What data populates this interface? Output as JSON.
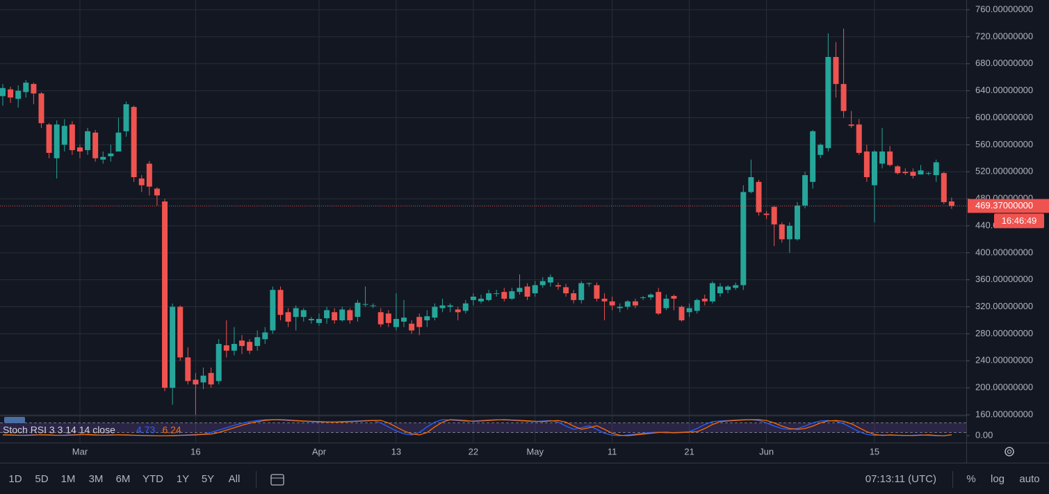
{
  "chart_data": [
    {
      "type": "candlestick",
      "open": [
        632,
        642,
        628,
        638,
        650,
        636,
        590,
        540,
        560,
        590,
        556,
        552,
        578,
        538,
        543,
        550,
        580,
        616,
        510,
        532,
        495,
        476,
        200,
        320,
        245,
        212,
        208,
        222,
        210,
        263,
        255,
        270,
        268,
        262,
        272,
        285,
        345,
        312,
        305,
        305,
        300,
        296,
        303,
        312,
        300,
        315,
        305,
        324,
        322,
        312,
        310,
        290,
        298,
        295,
        305,
        300,
        304,
        318,
        320,
        316,
        314,
        330,
        328,
        330,
        340,
        342,
        332,
        342,
        350,
        340,
        352,
        356,
        352,
        349,
        340,
        330,
        355,
        352,
        332,
        328,
        318,
        320,
        328,
        334,
        334,
        342,
        318,
        336,
        320,
        312,
        314,
        332,
        328,
        340,
        345,
        348,
        352,
        490,
        505,
        458,
        468,
        442,
        420,
        420,
        470,
        505,
        545,
        555,
        690,
        650,
        590,
        590,
        550,
        500,
        532,
        550,
        528,
        520,
        520,
        516,
        518,
        515,
        518,
        476
      ],
      "high": [
        650,
        646,
        648,
        656,
        652,
        638,
        592,
        596,
        598,
        595,
        560,
        585,
        582,
        550,
        560,
        600,
        624,
        618,
        515,
        536,
        497,
        480,
        325,
        322,
        260,
        222,
        230,
        230,
        272,
        300,
        290,
        278,
        272,
        285,
        290,
        350,
        350,
        318,
        322,
        318,
        305,
        310,
        320,
        318,
        320,
        318,
        330,
        350,
        325,
        318,
        315,
        340,
        330,
        300,
        310,
        315,
        325,
        332,
        325,
        320,
        330,
        340,
        338,
        345,
        345,
        348,
        348,
        368,
        355,
        358,
        364,
        368,
        356,
        354,
        345,
        358,
        356,
        356,
        340,
        335,
        325,
        330,
        332,
        336,
        340,
        348,
        338,
        338,
        322,
        325,
        332,
        338,
        358,
        355,
        352,
        356,
        500,
        538,
        508,
        462,
        470,
        445,
        445,
        475,
        520,
        582,
        562,
        725,
        712,
        732,
        610,
        598,
        560,
        552,
        585,
        558,
        530,
        525,
        525,
        530,
        520,
        538,
        520,
        482
      ],
      "low": [
        618,
        622,
        615,
        630,
        620,
        585,
        540,
        510,
        550,
        545,
        540,
        545,
        535,
        532,
        535,
        555,
        572,
        505,
        490,
        485,
        470,
        195,
        175,
        240,
        205,
        160,
        198,
        200,
        205,
        245,
        248,
        250,
        250,
        255,
        265,
        280,
        300,
        290,
        285,
        298,
        295,
        292,
        295,
        295,
        298,
        295,
        298,
        320,
        318,
        290,
        290,
        285,
        290,
        280,
        278,
        290,
        300,
        312,
        312,
        300,
        310,
        322,
        325,
        328,
        335,
        328,
        330,
        338,
        330,
        335,
        348,
        350,
        345,
        335,
        325,
        325,
        350,
        328,
        300,
        315,
        312,
        316,
        318,
        330,
        330,
        308,
        315,
        315,
        298,
        305,
        310,
        322,
        325,
        335,
        340,
        345,
        345,
        488,
        455,
        450,
        410,
        415,
        400,
        418,
        466,
        495,
        540,
        550,
        630,
        600,
        585,
        545,
        505,
        445,
        525,
        528,
        516,
        515,
        510,
        516,
        515,
        505,
        472,
        465
      ],
      "close": [
        644,
        630,
        640,
        652,
        636,
        592,
        548,
        590,
        588,
        552,
        550,
        580,
        540,
        542,
        547,
        578,
        620,
        512,
        500,
        498,
        485,
        200,
        320,
        245,
        210,
        205,
        218,
        205,
        265,
        255,
        265,
        262,
        255,
        275,
        282,
        345,
        308,
        298,
        318,
        315,
        302,
        302,
        315,
        300,
        316,
        300,
        326,
        324,
        322,
        294,
        296,
        302,
        304,
        285,
        290,
        306,
        320,
        322,
        322,
        312,
        325,
        335,
        332,
        340,
        340,
        332,
        343,
        348,
        335,
        352,
        358,
        364,
        350,
        340,
        330,
        355,
        355,
        332,
        328,
        322,
        320,
        328,
        322,
        334,
        338,
        310,
        332,
        332,
        300,
        318,
        330,
        328,
        355,
        350,
        350,
        352,
        490,
        512,
        460,
        456,
        442,
        420,
        440,
        470,
        515,
        580,
        560,
        690,
        650,
        610,
        588,
        548,
        512,
        550,
        550,
        530,
        518,
        518,
        514,
        522,
        518,
        534,
        475,
        469.37
      ],
      "up_color": "#26a69a",
      "down_color": "#ef5350",
      "xlim": [
        -0.36,
        124.9
      ],
      "xticks": [
        {
          "value": 10,
          "label": "Mar"
        },
        {
          "value": 25,
          "label": "16"
        },
        {
          "value": 41,
          "label": "Apr"
        },
        {
          "value": 51,
          "label": "13"
        },
        {
          "value": 61,
          "label": "22"
        },
        {
          "value": 69,
          "label": "May"
        },
        {
          "value": 79,
          "label": "11"
        },
        {
          "value": 89,
          "label": "21"
        },
        {
          "value": 99,
          "label": "Jun"
        },
        {
          "value": 113,
          "label": "15"
        }
      ],
      "ylim": [
        159,
        774.4
      ],
      "yticks": [
        {
          "value": 160,
          "label": "160.00000000"
        },
        {
          "value": 200,
          "label": "200.00000000"
        },
        {
          "value": 240,
          "label": "240.00000000"
        },
        {
          "value": 280,
          "label": "280.00000000"
        },
        {
          "value": 320,
          "label": "320.00000000"
        },
        {
          "value": 360,
          "label": "360.00000000"
        },
        {
          "value": 400,
          "label": "400.00000000"
        },
        {
          "value": 440,
          "label": "440.00000000"
        },
        {
          "value": 480,
          "label": "480.00000000"
        },
        {
          "value": 520,
          "label": "520.00000000"
        },
        {
          "value": 560,
          "label": "560.00000000"
        },
        {
          "value": 600,
          "label": "600.00000000"
        },
        {
          "value": 640,
          "label": "640.00000000"
        },
        {
          "value": 680,
          "label": "680.00000000"
        },
        {
          "value": 720,
          "label": "720.00000000"
        },
        {
          "value": 760,
          "label": "760.00000000"
        }
      ],
      "grid": true,
      "last_price": {
        "value": 469.37,
        "label": "469.37000000"
      },
      "countdown": "16:46:49"
    },
    {
      "type": "line",
      "title": "Stoch RSI 3 3 14 14 close",
      "series": [
        {
          "color": "#2962ff",
          "values": [
            5,
            3,
            2,
            4,
            6,
            5,
            3,
            2,
            4,
            6,
            8,
            5,
            3,
            4,
            6,
            5,
            3,
            2,
            1,
            0,
            0,
            0,
            2,
            3,
            5,
            8,
            10,
            20,
            35,
            50,
            65,
            78,
            88,
            95,
            100,
            100,
            98,
            95,
            92,
            90,
            88,
            86,
            85,
            86,
            88,
            90,
            92,
            95,
            96,
            80,
            55,
            30,
            12,
            5,
            20,
            55,
            85,
            100,
            98,
            95,
            90,
            92,
            95,
            98,
            100,
            98,
            96,
            93,
            90,
            88,
            92,
            95,
            85,
            60,
            40,
            50,
            62,
            40,
            15,
            3,
            0,
            5,
            10,
            15,
            20,
            22,
            18,
            20,
            22,
            25,
            45,
            70,
            88,
            92,
            95,
            98,
            100,
            100,
            95,
            80,
            60,
            45,
            40,
            45,
            60,
            80,
            92,
            95,
            90,
            75,
            50,
            25,
            8,
            2,
            5,
            3,
            2,
            1,
            3,
            5,
            2,
            0,
            0,
            4.73
          ]
        },
        {
          "color": "#ff6d00",
          "values": [
            5,
            5,
            3,
            2,
            4,
            6,
            5,
            3,
            2,
            4,
            6,
            8,
            5,
            3,
            4,
            6,
            5,
            3,
            2,
            1,
            0,
            0,
            0,
            2,
            3,
            5,
            8,
            10,
            20,
            35,
            50,
            65,
            78,
            88,
            95,
            100,
            100,
            98,
            95,
            92,
            90,
            88,
            86,
            85,
            86,
            88,
            90,
            92,
            95,
            96,
            80,
            55,
            30,
            12,
            5,
            20,
            55,
            85,
            100,
            98,
            95,
            90,
            92,
            95,
            98,
            100,
            98,
            96,
            93,
            90,
            88,
            92,
            95,
            85,
            60,
            40,
            50,
            62,
            40,
            15,
            3,
            0,
            5,
            10,
            15,
            20,
            22,
            18,
            20,
            22,
            25,
            45,
            70,
            88,
            92,
            95,
            98,
            100,
            100,
            95,
            80,
            60,
            45,
            40,
            45,
            60,
            80,
            92,
            95,
            90,
            75,
            50,
            25,
            8,
            2,
            5,
            3,
            2,
            1,
            3,
            5,
            2,
            0,
            6.24
          ]
        }
      ],
      "ylim": [
        -43,
        122
      ],
      "yticks": [
        {
          "value": 0,
          "label": "0.00"
        }
      ],
      "bands": [
        20,
        80
      ],
      "band_color": "#7e57c2"
    }
  ],
  "toolbar": {
    "ranges": [
      "1D",
      "5D",
      "1M",
      "3M",
      "6M",
      "YTD",
      "1Y",
      "5Y",
      "All"
    ],
    "clock": "07:13:11 (UTC)",
    "options": [
      "%",
      "log",
      "auto"
    ]
  }
}
